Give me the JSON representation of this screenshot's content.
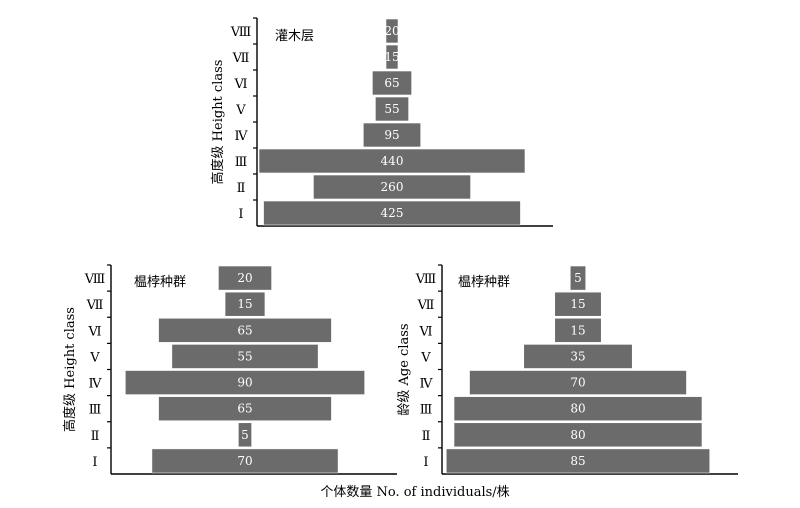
{
  "chart_data": [
    {
      "type": "bar",
      "orientation": "horizontal",
      "layout": "pyramid",
      "title": "灌木层",
      "ylabel": "高度级 Height class",
      "categories": [
        "Ⅰ",
        "Ⅱ",
        "Ⅲ",
        "Ⅳ",
        "Ⅴ",
        "Ⅵ",
        "Ⅶ",
        "Ⅷ"
      ],
      "values": [
        425,
        260,
        440,
        95,
        55,
        65,
        15,
        20
      ],
      "bar_color": "#6b6b6b"
    },
    {
      "type": "bar",
      "orientation": "horizontal",
      "layout": "pyramid",
      "title": "榅桲种群",
      "ylabel": "高度级 Height class",
      "categories": [
        "Ⅰ",
        "Ⅱ",
        "Ⅲ",
        "Ⅳ",
        "Ⅴ",
        "Ⅵ",
        "Ⅶ",
        "Ⅷ"
      ],
      "values": [
        70,
        5,
        65,
        90,
        55,
        65,
        15,
        20
      ],
      "bar_color": "#6b6b6b"
    },
    {
      "type": "bar",
      "orientation": "horizontal",
      "layout": "pyramid",
      "title": "榅桲种群",
      "ylabel": "龄级 Age class",
      "categories": [
        "Ⅰ",
        "Ⅱ",
        "Ⅲ",
        "Ⅳ",
        "Ⅴ",
        "Ⅵ",
        "Ⅶ",
        "Ⅷ"
      ],
      "values": [
        85,
        80,
        80,
        70,
        35,
        15,
        15,
        5
      ],
      "bar_color": "#6b6b6b"
    }
  ],
  "xlabel": "个体数量 No. of individuals/株"
}
